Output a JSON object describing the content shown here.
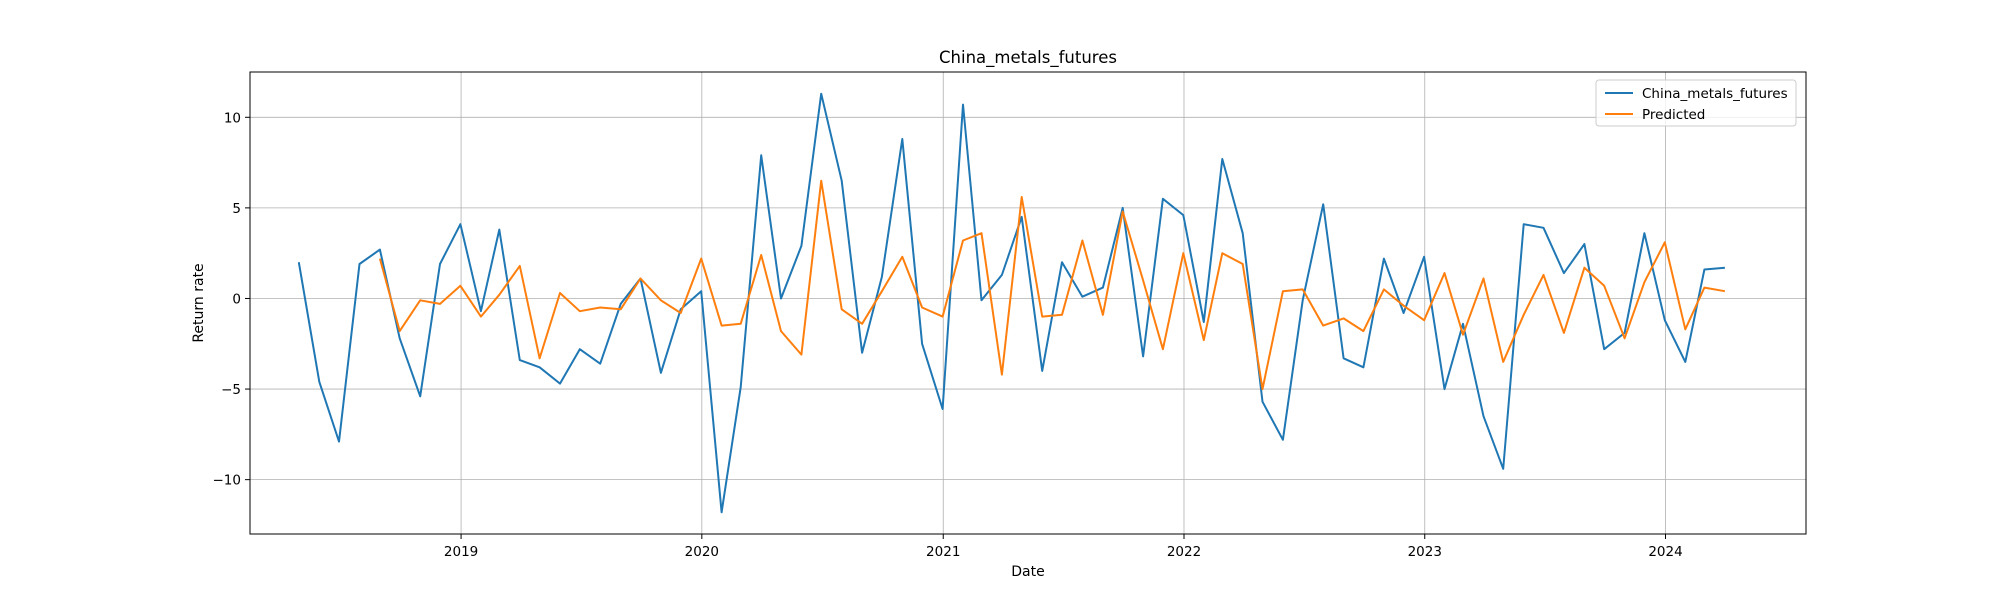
{
  "chart_data": {
    "type": "line",
    "title": "China_metals_futures",
    "xlabel": "Date",
    "ylabel": "Return rate",
    "grid": true,
    "legend_position": "top-right",
    "x_ticks": [
      "2019",
      "2020",
      "2021",
      "2022",
      "2023",
      "2024"
    ],
    "y_ticks": [
      -10,
      -5,
      0,
      5,
      10
    ],
    "xlim": [
      "2018-02-15",
      "2024-08-01"
    ],
    "ylim": [
      -13,
      12.5
    ],
    "series": [
      {
        "name": "China_metals_futures",
        "color": "#1f77b4",
        "x": [
          "2018-04-30",
          "2018-05-31",
          "2018-06-30",
          "2018-07-31",
          "2018-08-31",
          "2018-09-30",
          "2018-10-31",
          "2018-11-30",
          "2018-12-31",
          "2019-01-31",
          "2019-02-28",
          "2019-03-31",
          "2019-04-30",
          "2019-05-31",
          "2019-06-30",
          "2019-07-31",
          "2019-08-31",
          "2019-09-30",
          "2019-10-31",
          "2019-11-30",
          "2019-12-31",
          "2020-01-31",
          "2020-02-29",
          "2020-03-31",
          "2020-04-30",
          "2020-05-31",
          "2020-06-30",
          "2020-07-31",
          "2020-08-31",
          "2020-09-30",
          "2020-10-31",
          "2020-11-30",
          "2020-12-31",
          "2021-01-31",
          "2021-02-28",
          "2021-03-31",
          "2021-04-30",
          "2021-05-31",
          "2021-06-30",
          "2021-07-31",
          "2021-08-31",
          "2021-09-30",
          "2021-10-31",
          "2021-11-30",
          "2021-12-31",
          "2022-01-31",
          "2022-02-28",
          "2022-03-31",
          "2022-04-30",
          "2022-05-31",
          "2022-06-30",
          "2022-07-31",
          "2022-08-31",
          "2022-09-30",
          "2022-10-31",
          "2022-11-30",
          "2022-12-31",
          "2023-01-31",
          "2023-02-28",
          "2023-03-31",
          "2023-04-30",
          "2023-05-31",
          "2023-06-30",
          "2023-07-31",
          "2023-08-31",
          "2023-09-30",
          "2023-10-31",
          "2023-11-30",
          "2023-12-31",
          "2024-01-31",
          "2024-02-29",
          "2024-03-31"
        ],
        "y": [
          2.0,
          -4.6,
          -7.9,
          1.9,
          2.7,
          -2.2,
          -5.4,
          1.9,
          4.1,
          -0.7,
          3.8,
          -3.4,
          -3.8,
          -4.7,
          -2.8,
          -3.6,
          -0.3,
          1.1,
          -4.1,
          -0.6,
          0.4,
          -11.8,
          -4.9,
          7.9,
          0.0,
          2.9,
          11.3,
          6.5,
          -3.0,
          1.2,
          8.8,
          -2.5,
          -6.1,
          10.7,
          -0.1,
          1.3,
          4.5,
          -4.0,
          2.0,
          0.1,
          0.6,
          5.0,
          -3.2,
          5.5,
          4.6,
          -1.3,
          7.7,
          3.6,
          -5.7,
          -7.8,
          -0.1,
          5.2,
          -3.3,
          -3.8,
          2.2,
          -0.8,
          2.3,
          -5.0,
          -1.4,
          -6.5,
          -9.4,
          4.1,
          3.9,
          1.4,
          3.0,
          -2.8,
          -1.9,
          3.6,
          -1.2,
          -3.5,
          1.6,
          1.7
        ]
      },
      {
        "name": "Predicted",
        "color": "#ff7f0e",
        "x": [
          "2018-08-31",
          "2018-09-30",
          "2018-10-31",
          "2018-11-30",
          "2018-12-31",
          "2019-01-31",
          "2019-02-28",
          "2019-03-31",
          "2019-04-30",
          "2019-05-31",
          "2019-06-30",
          "2019-07-31",
          "2019-08-31",
          "2019-09-30",
          "2019-10-31",
          "2019-11-30",
          "2019-12-31",
          "2020-01-31",
          "2020-02-29",
          "2020-03-31",
          "2020-04-30",
          "2020-05-31",
          "2020-06-30",
          "2020-07-31",
          "2020-08-31",
          "2020-09-30",
          "2020-10-31",
          "2020-11-30",
          "2020-12-31",
          "2021-01-31",
          "2021-02-28",
          "2021-03-31",
          "2021-04-30",
          "2021-05-31",
          "2021-06-30",
          "2021-07-31",
          "2021-08-31",
          "2021-09-30",
          "2021-10-31",
          "2021-11-30",
          "2021-12-31",
          "2022-01-31",
          "2022-02-28",
          "2022-03-31",
          "2022-04-30",
          "2022-05-31",
          "2022-06-30",
          "2022-07-31",
          "2022-08-31",
          "2022-09-30",
          "2022-10-31",
          "2022-11-30",
          "2022-12-31",
          "2023-01-31",
          "2023-02-28",
          "2023-03-31",
          "2023-04-30",
          "2023-05-31",
          "2023-06-30",
          "2023-07-31",
          "2023-08-31",
          "2023-09-30",
          "2023-10-31",
          "2023-11-30",
          "2023-12-31",
          "2024-01-31",
          "2024-02-29",
          "2024-03-31"
        ],
        "y": [
          2.2,
          -1.8,
          -0.1,
          -0.3,
          0.7,
          -1.0,
          0.2,
          1.8,
          -3.3,
          0.3,
          -0.7,
          -0.5,
          -0.6,
          1.1,
          -0.1,
          -0.8,
          2.2,
          -1.5,
          -1.4,
          2.4,
          -1.8,
          -3.1,
          6.5,
          -0.6,
          -1.4,
          0.4,
          2.3,
          -0.5,
          -1.0,
          3.2,
          3.6,
          -4.2,
          5.6,
          -1.0,
          -0.9,
          3.2,
          -0.9,
          4.8,
          1.0,
          -2.8,
          2.5,
          -2.3,
          2.5,
          1.9,
          -5.0,
          0.4,
          0.5,
          -1.5,
          -1.1,
          -1.8,
          0.5,
          -0.4,
          -1.2,
          1.4,
          -2.0,
          1.1,
          -3.5,
          -0.9,
          1.3,
          -1.9,
          1.7,
          0.7,
          -2.2,
          0.9,
          3.1,
          -1.7,
          0.6,
          0.4
        ]
      }
    ]
  }
}
